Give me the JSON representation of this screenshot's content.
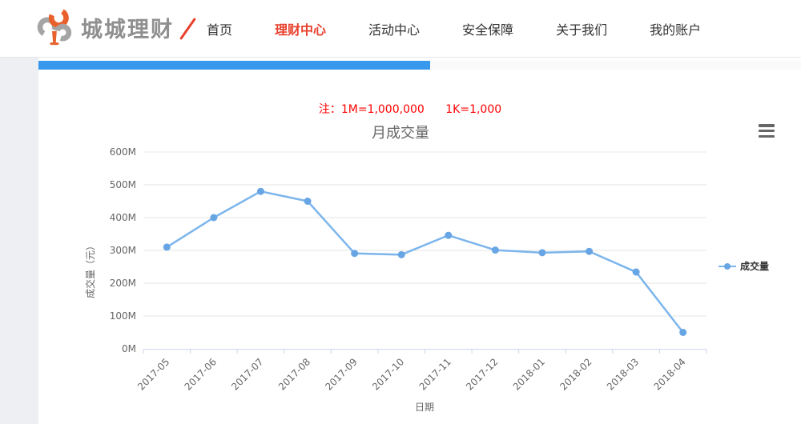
{
  "header": {
    "logo": {
      "text": "城城理财"
    },
    "nav": [
      {
        "label": "首页"
      },
      {
        "label": "理财中心"
      },
      {
        "label": "活动中心"
      },
      {
        "label": "安全保障"
      },
      {
        "label": "关于我们"
      },
      {
        "label": "我的账户"
      }
    ],
    "active_item": "理财中心"
  },
  "note": {
    "label": "注：",
    "definitions": [
      "1M=1,000,000",
      "1K=1,000"
    ]
  },
  "chart_data": {
    "type": "line",
    "title": "月成交量",
    "xlabel": "日期",
    "ylabel": "成交量（元）",
    "categories": [
      "2017-05",
      "2017-06",
      "2017-07",
      "2017-08",
      "2017-09",
      "2017-10",
      "2017-11",
      "2017-12",
      "2018-01",
      "2018-02",
      "2018-03",
      "2018-04"
    ],
    "series": [
      {
        "name": "成交量",
        "values": [
          310,
          400,
          480,
          450,
          291,
          287,
          346,
          301,
          293,
          297,
          234,
          50
        ]
      }
    ],
    "unit": "M",
    "ylim": [
      0,
      600
    ],
    "ytick_step": 100,
    "ytick_suffix": "M",
    "grid": true,
    "legend_position": "right",
    "line_color": "#7cb5ec",
    "marker_color": "#68a5e4",
    "grid_color": "#e6e6e6",
    "axis_color": "#ccd6eb",
    "label_color": "#666666"
  },
  "colors": {
    "nav_active_red": "#e8402d",
    "progress_blue": "#3898ec",
    "note_red": "#ff0000",
    "logo_orange": "#e8612c",
    "logo_gray": "#a5a5a5"
  }
}
